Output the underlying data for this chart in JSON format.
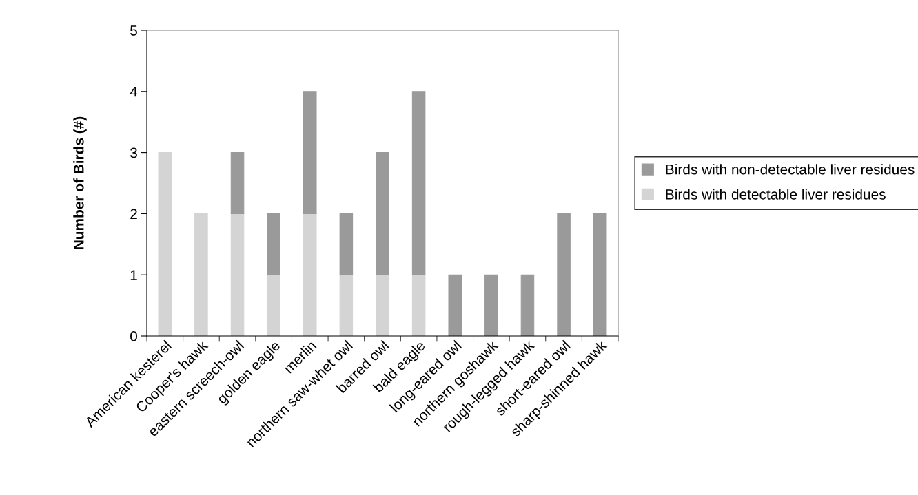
{
  "chart_data": {
    "type": "bar",
    "stacked": true,
    "ylabel": "Number of Birds (#)",
    "categories": [
      "American kesterel",
      "Cooper's hawk",
      "eastern screech-owl",
      "golden eagle",
      "merlin",
      "northern saw-whet owl",
      "barred owl",
      "bald eagle",
      "long-eared owl",
      "northern goshawk",
      "rough-legged hawk",
      "short-eared owl",
      "sharp-shinned hawk"
    ],
    "series": [
      {
        "name": "Birds with detectable liver residues",
        "color": "#d4d4d4",
        "values": [
          3,
          2,
          2,
          1,
          2,
          1,
          1,
          1,
          0,
          0,
          0,
          0,
          0
        ]
      },
      {
        "name": "Birds with non-detectable liver residues",
        "color": "#9a9a9a",
        "values": [
          0,
          0,
          1,
          1,
          2,
          1,
          2,
          3,
          1,
          1,
          1,
          2,
          2
        ]
      }
    ],
    "ylim": [
      0,
      5
    ],
    "yticks": [
      0,
      1,
      2,
      3,
      4,
      5
    ],
    "grid": false,
    "legend": "right"
  }
}
